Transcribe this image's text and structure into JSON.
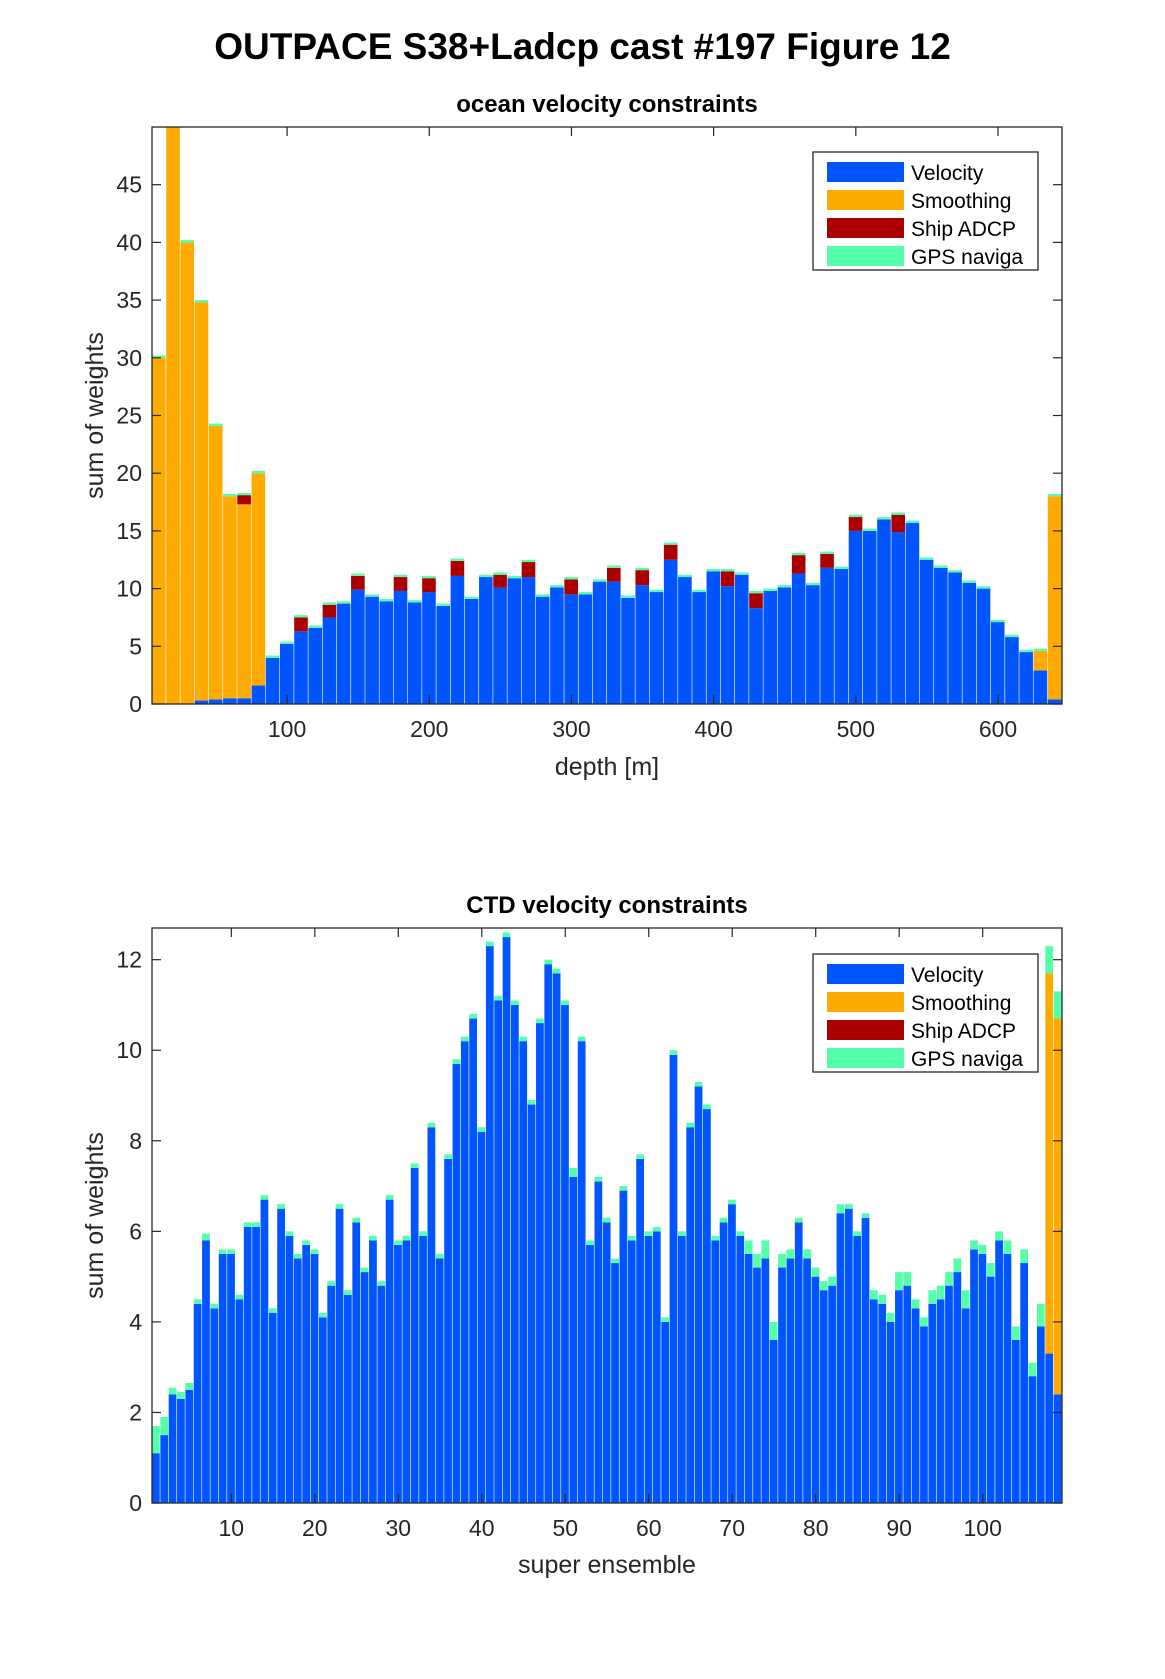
{
  "figure_title": "OUTPACE S38+Ladcp cast #197  Figure 12",
  "colors": {
    "velocity": "#0055ff",
    "smoothing": "#ffaa00",
    "ship_adcp": "#aa0000",
    "gps": "#55ffaa"
  },
  "chart_data": [
    {
      "type": "bar",
      "stacked": true,
      "title": "ocean velocity constraints",
      "xlabel": "depth [m]",
      "ylabel": "sum of weights",
      "xlim": [
        5,
        645
      ],
      "ylim": [
        0,
        50
      ],
      "xticks": [
        100,
        200,
        300,
        400,
        500,
        600
      ],
      "yticks": [
        0,
        5,
        10,
        15,
        20,
        25,
        30,
        35,
        40,
        45
      ],
      "legend_position": "top-right",
      "bin_width": 10,
      "x": [
        10,
        20,
        30,
        40,
        50,
        60,
        70,
        80,
        90,
        100,
        110,
        120,
        130,
        140,
        150,
        160,
        170,
        180,
        190,
        200,
        210,
        220,
        230,
        240,
        250,
        260,
        270,
        280,
        290,
        300,
        310,
        320,
        330,
        340,
        350,
        360,
        370,
        380,
        390,
        400,
        410,
        420,
        430,
        440,
        450,
        460,
        470,
        480,
        490,
        500,
        510,
        520,
        530,
        540,
        550,
        560,
        570,
        580,
        590,
        600,
        610,
        620,
        630,
        640
      ],
      "series": [
        {
          "name": "Velocity",
          "values": [
            0,
            0,
            0,
            0.3,
            0.4,
            0.5,
            0.5,
            1.6,
            4,
            5.2,
            6.3,
            6.6,
            7.5,
            8.7,
            9.9,
            9.3,
            8.9,
            9.8,
            8.8,
            9.7,
            8.5,
            11.1,
            9.1,
            11,
            10.1,
            10.9,
            11,
            9.3,
            10.1,
            9.5,
            9.5,
            10.6,
            10.6,
            9.2,
            10.3,
            9.7,
            12.5,
            11,
            9.7,
            11.5,
            10.2,
            11.2,
            8.3,
            9.8,
            10.1,
            11.3,
            10.3,
            11.8,
            11.7,
            15,
            15,
            16,
            14.9,
            15.7,
            12.5,
            11.8,
            11.4,
            10.5,
            10,
            7.1,
            5.8,
            4.5,
            2.9,
            0.4
          ]
        },
        {
          "name": "Smoothing",
          "values": [
            30,
            50,
            40,
            34.5,
            23.7,
            17.5,
            16.8,
            18.4,
            0,
            0,
            0,
            0,
            0,
            0,
            0,
            0,
            0,
            0,
            0,
            0,
            0,
            0,
            0,
            0,
            0,
            0,
            0,
            0,
            0,
            0,
            0,
            0,
            0,
            0,
            0,
            0,
            0,
            0,
            0,
            0,
            0,
            0,
            0,
            0,
            0,
            0,
            0,
            0,
            0,
            0,
            0,
            0,
            0,
            0,
            0,
            0,
            0,
            0,
            0,
            0,
            0,
            0,
            1.7,
            17.6
          ]
        },
        {
          "name": "Ship ADCP",
          "values": [
            0,
            0,
            0,
            0,
            0,
            0,
            0.8,
            0,
            0,
            0,
            1.2,
            0,
            1.1,
            0,
            1.2,
            0,
            0,
            1.2,
            0,
            1.2,
            0,
            1.3,
            0,
            0,
            1.1,
            0,
            1.3,
            0,
            0,
            1.3,
            0,
            0,
            1.2,
            0,
            1.3,
            0,
            1.3,
            0,
            0,
            0,
            1.3,
            0,
            1.3,
            0,
            0,
            1.6,
            0,
            1.2,
            0,
            1.2,
            0,
            0,
            1.5,
            0,
            0,
            0,
            0,
            0,
            0,
            0,
            0,
            0,
            0,
            0
          ]
        },
        {
          "name": "GPS naviga",
          "values": [
            0.2,
            0.2,
            0.2,
            0.2,
            0.2,
            0.2,
            0.2,
            0.2,
            0.2,
            0.2,
            0.2,
            0.2,
            0.2,
            0.2,
            0.2,
            0.2,
            0.2,
            0.2,
            0.2,
            0.2,
            0.2,
            0.2,
            0.2,
            0.2,
            0.2,
            0.2,
            0.2,
            0.2,
            0.2,
            0.2,
            0.2,
            0.2,
            0.2,
            0.2,
            0.2,
            0.2,
            0.2,
            0.2,
            0.2,
            0.2,
            0.2,
            0.2,
            0.2,
            0.2,
            0.2,
            0.2,
            0.2,
            0.2,
            0.2,
            0.2,
            0.2,
            0.2,
            0.2,
            0.2,
            0.2,
            0.2,
            0.2,
            0.2,
            0.2,
            0.2,
            0.2,
            0.2,
            0.2,
            0.2
          ]
        }
      ]
    },
    {
      "type": "bar",
      "stacked": true,
      "title": "CTD velocity constraints",
      "xlabel": "super ensemble",
      "ylabel": "sum of weights",
      "xlim": [
        0.5,
        109.5
      ],
      "ylim": [
        0,
        12.7
      ],
      "xticks": [
        10,
        20,
        30,
        40,
        50,
        60,
        70,
        80,
        90,
        100
      ],
      "yticks": [
        0,
        2,
        4,
        6,
        8,
        10,
        12
      ],
      "legend_position": "top-right",
      "bin_width": 1,
      "x": [
        1,
        2,
        3,
        4,
        5,
        6,
        7,
        8,
        9,
        10,
        11,
        12,
        13,
        14,
        15,
        16,
        17,
        18,
        19,
        20,
        21,
        22,
        23,
        24,
        25,
        26,
        27,
        28,
        29,
        30,
        31,
        32,
        33,
        34,
        35,
        36,
        37,
        38,
        39,
        40,
        41,
        42,
        43,
        44,
        45,
        46,
        47,
        48,
        49,
        50,
        51,
        52,
        53,
        54,
        55,
        56,
        57,
        58,
        59,
        60,
        61,
        62,
        63,
        64,
        65,
        66,
        67,
        68,
        69,
        70,
        71,
        72,
        73,
        74,
        75,
        76,
        77,
        78,
        79,
        80,
        81,
        82,
        83,
        84,
        85,
        86,
        87,
        88,
        89,
        90,
        91,
        92,
        93,
        94,
        95,
        96,
        97,
        98,
        99,
        100,
        101,
        102,
        103,
        104,
        105,
        106,
        107,
        108,
        109
      ],
      "series": [
        {
          "name": "Velocity",
          "values": [
            1.1,
            1.5,
            2.4,
            2.3,
            2.5,
            4.4,
            5.8,
            4.3,
            5.5,
            5.5,
            4.5,
            6.1,
            6.1,
            6.7,
            4.2,
            6.5,
            5.9,
            5.4,
            5.7,
            5.5,
            4.1,
            4.8,
            6.5,
            4.6,
            6.2,
            5.1,
            5.8,
            4.8,
            6.7,
            5.7,
            5.8,
            7.4,
            5.9,
            8.3,
            5.4,
            7.6,
            9.7,
            10.2,
            10.7,
            8.2,
            12.3,
            11.1,
            12.5,
            11,
            10.2,
            8.8,
            10.6,
            11.9,
            11.7,
            11,
            7.2,
            10.2,
            5.7,
            7.1,
            6.2,
            5.3,
            6.9,
            5.8,
            7.6,
            5.9,
            6,
            4,
            9.9,
            5.9,
            8.3,
            9.2,
            8.7,
            5.8,
            6.2,
            6.6,
            5.9,
            5.5,
            5.2,
            5.4,
            3.6,
            5.2,
            5.4,
            6.2,
            5.4,
            5,
            4.7,
            4.8,
            6.4,
            6.5,
            5.9,
            6.3,
            4.5,
            4.4,
            4,
            4.7,
            4.8,
            4.3,
            3.9,
            4.4,
            4.5,
            4.8,
            5.1,
            4.3,
            5.6,
            5.5,
            5,
            5.8,
            5.5,
            3.6,
            5.3,
            2.8,
            3.9,
            3.3,
            2.4
          ]
        },
        {
          "name": "Smoothing",
          "values": [
            0,
            0,
            0,
            0,
            0,
            0,
            0,
            0,
            0,
            0,
            0,
            0,
            0,
            0,
            0,
            0,
            0,
            0,
            0,
            0,
            0,
            0,
            0,
            0,
            0,
            0,
            0,
            0,
            0,
            0,
            0,
            0,
            0,
            0,
            0,
            0,
            0,
            0,
            0,
            0,
            0,
            0,
            0,
            0,
            0,
            0,
            0,
            0,
            0,
            0,
            0,
            0,
            0,
            0,
            0,
            0,
            0,
            0,
            0,
            0,
            0,
            0,
            0,
            0,
            0,
            0,
            0,
            0,
            0,
            0,
            0,
            0,
            0,
            0,
            0,
            0,
            0,
            0,
            0,
            0,
            0,
            0,
            0,
            0,
            0,
            0,
            0,
            0,
            0,
            0,
            0,
            0,
            0,
            0,
            0,
            0,
            0,
            0,
            0,
            0,
            0,
            0,
            0,
            0,
            0,
            0,
            0,
            8.4,
            8.3
          ]
        },
        {
          "name": "Ship ADCP",
          "values": [
            0,
            0,
            0,
            0,
            0,
            0,
            0,
            0,
            0,
            0,
            0,
            0,
            0,
            0,
            0,
            0,
            0,
            0,
            0,
            0,
            0,
            0,
            0,
            0,
            0,
            0,
            0,
            0,
            0,
            0,
            0,
            0,
            0,
            0,
            0,
            0,
            0,
            0,
            0,
            0,
            0,
            0,
            0,
            0,
            0,
            0,
            0,
            0,
            0,
            0,
            0,
            0,
            0,
            0,
            0,
            0,
            0,
            0,
            0,
            0,
            0,
            0,
            0,
            0,
            0,
            0,
            0,
            0,
            0,
            0,
            0,
            0,
            0,
            0,
            0,
            0,
            0,
            0,
            0,
            0,
            0,
            0,
            0,
            0,
            0,
            0,
            0,
            0,
            0,
            0,
            0,
            0,
            0,
            0,
            0,
            0,
            0,
            0,
            0,
            0,
            0,
            0,
            0,
            0,
            0,
            0,
            0,
            0,
            0
          ]
        },
        {
          "name": "GPS naviga",
          "values": [
            0.6,
            0.4,
            0.15,
            0.15,
            0.15,
            0.1,
            0.15,
            0.1,
            0.1,
            0.1,
            0.1,
            0.1,
            0.1,
            0.1,
            0.1,
            0.1,
            0.1,
            0.1,
            0.1,
            0.1,
            0.1,
            0.1,
            0.1,
            0.1,
            0.1,
            0.1,
            0.1,
            0.1,
            0.1,
            0.1,
            0.1,
            0.1,
            0.1,
            0.1,
            0.1,
            0.1,
            0.1,
            0.1,
            0.1,
            0.1,
            0.1,
            0.1,
            0.1,
            0.1,
            0.1,
            0.1,
            0.1,
            0.1,
            0.1,
            0.1,
            0.2,
            0.1,
            0.1,
            0.1,
            0.1,
            0.1,
            0.1,
            0.1,
            0.1,
            0.1,
            0.1,
            0.1,
            0.1,
            0.1,
            0.1,
            0.1,
            0.1,
            0.1,
            0.1,
            0.1,
            0.1,
            0.3,
            0.3,
            0.4,
            0.4,
            0.3,
            0.2,
            0.1,
            0.2,
            0.2,
            0.2,
            0.2,
            0.2,
            0.1,
            0.1,
            0.1,
            0.2,
            0.2,
            0.2,
            0.4,
            0.3,
            0.2,
            0.2,
            0.3,
            0.3,
            0.3,
            0.3,
            0.4,
            0.2,
            0.2,
            0.3,
            0.2,
            0.3,
            0.3,
            0.3,
            0.3,
            0.5,
            0.6,
            0.6
          ]
        }
      ]
    }
  ]
}
